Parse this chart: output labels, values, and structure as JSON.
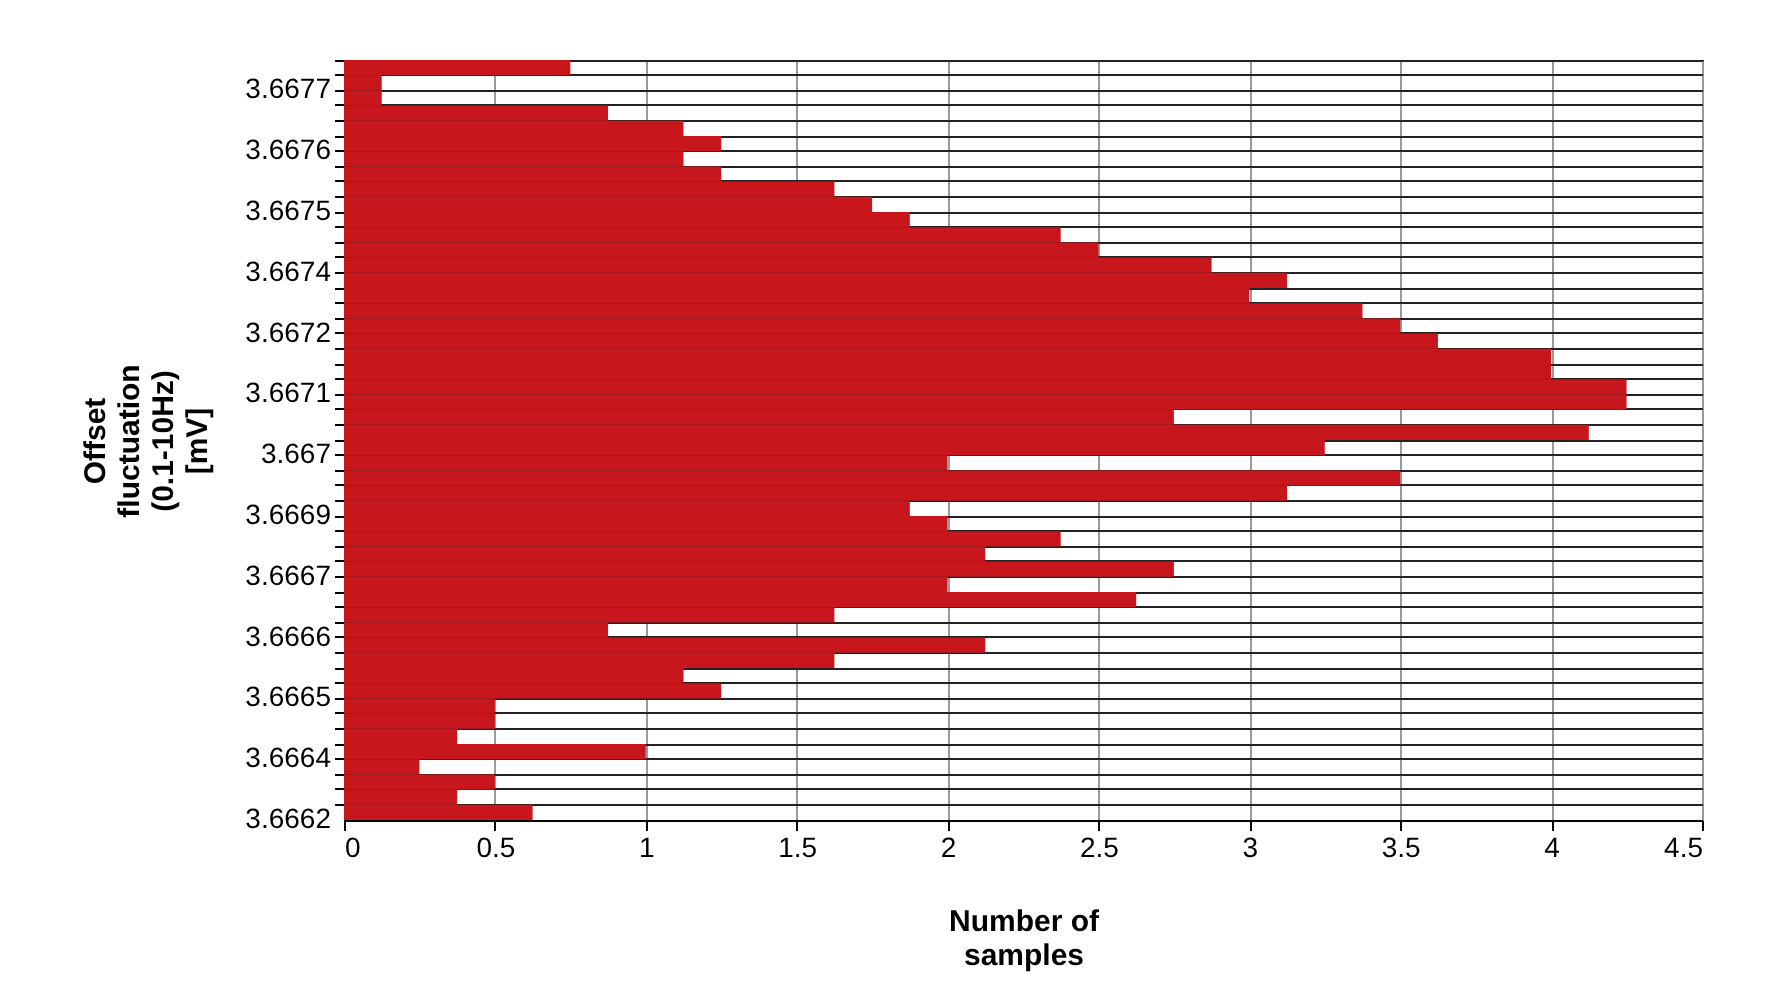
{
  "chart_data": {
    "type": "bar",
    "orientation": "horizontal",
    "xlabel": "Number of samples",
    "ylabel": "Offset fluctuation (0.1-10Hz) [mV]",
    "categories": [
      null,
      "3.6677",
      null,
      null,
      null,
      "3.6676",
      null,
      null,
      null,
      "3.6675",
      null,
      null,
      null,
      "3.6674",
      null,
      null,
      null,
      "3.6672",
      null,
      null,
      null,
      "3.6671",
      null,
      null,
      null,
      "3.667",
      null,
      null,
      null,
      "3.6669",
      null,
      null,
      null,
      "3.6667",
      null,
      null,
      null,
      "3.6666",
      null,
      null,
      null,
      "3.6665",
      null,
      null,
      null,
      "3.6664",
      null,
      null,
      null,
      "3.6662"
    ],
    "values": [
      0.75,
      0.125,
      0.125,
      0.875,
      1.125,
      1.25,
      1.125,
      1.25,
      1.625,
      1.75,
      1.875,
      2.375,
      2.5,
      2.875,
      3.125,
      3,
      3.375,
      3.5,
      3.625,
      4,
      4,
      4.25,
      4.25,
      2.75,
      4.125,
      3.25,
      2,
      3.5,
      3.125,
      1.875,
      2,
      2.375,
      2.125,
      2.75,
      2,
      2.625,
      1.625,
      0.875,
      2.125,
      1.625,
      1.125,
      1.25,
      0.5,
      0.5,
      0.375,
      1,
      0.25,
      0.5,
      0.375,
      0.625
    ],
    "color": "#c8171c",
    "xlim": [
      0,
      4.5
    ],
    "xticks": [
      0,
      0.5,
      1,
      1.5,
      2,
      2.5,
      3,
      3.5,
      4,
      4.5
    ],
    "grid": true
  }
}
